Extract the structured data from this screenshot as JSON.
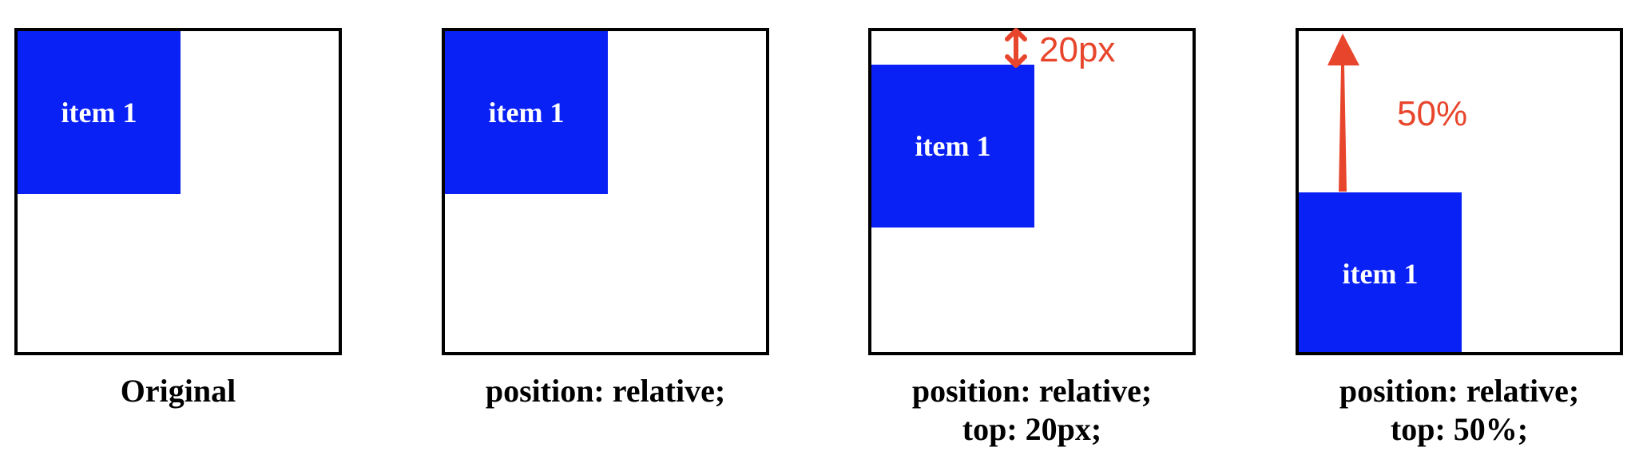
{
  "panels": [
    {
      "item_label": "item 1",
      "caption_lines": [
        "Original"
      ]
    },
    {
      "item_label": "item 1",
      "caption_lines": [
        "position: relative;"
      ]
    },
    {
      "item_label": "item 1",
      "caption_lines": [
        "position: relative;",
        "top: 20px;"
      ],
      "annotation": "20px"
    },
    {
      "item_label": "item 1",
      "caption_lines": [
        "position: relative;",
        "top: 50%;"
      ],
      "annotation": "50%"
    }
  ],
  "colors": {
    "item_fill": "#0a21f5",
    "item_text": "#ffffff",
    "annotation": "#e8462c",
    "border": "#000000"
  }
}
